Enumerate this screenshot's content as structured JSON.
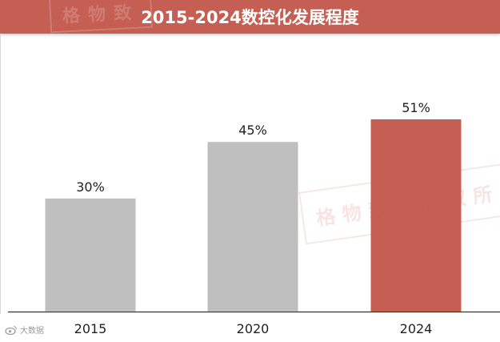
{
  "title": "2015-2024数控化发展程度",
  "watermark_text": "格物致胜版权所",
  "watermark_top_text": "格物致",
  "footer_brand": "大数据",
  "colors": {
    "title_bg": "#c55f53",
    "bar_default": "#bfbfbf",
    "bar_highlight": "#c55f53",
    "axis": "#333333",
    "text": "#222222"
  },
  "chart_data": {
    "type": "bar",
    "title": "2015-2024数控化发展程度",
    "categories": [
      "2015",
      "2020",
      "2024"
    ],
    "values": [
      30,
      45,
      51
    ],
    "data_labels": [
      "30%",
      "45%",
      "51%"
    ],
    "unit": "%",
    "highlight_index": 2,
    "ylim": [
      0,
      60
    ],
    "xlabel": "",
    "ylabel": "",
    "grid": false,
    "legend": "none"
  }
}
